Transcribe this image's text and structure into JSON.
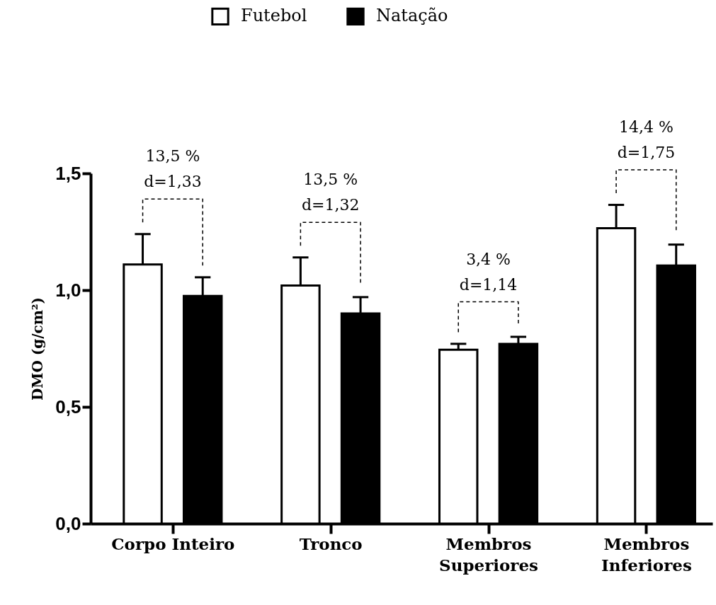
{
  "chart_data": {
    "type": "bar",
    "ylabel": "DMO (g/cm²)",
    "categories": [
      "Corpo Inteiro",
      "Tronco",
      "Membros\nSuperiores",
      "Membros\nInferiores"
    ],
    "series": [
      {
        "name": "Futebol",
        "color": "#ffffff",
        "values": [
          1.11,
          1.02,
          0.745,
          1.265
        ],
        "errors": [
          [
            1.11,
            1.24
          ],
          [
            1.02,
            1.14
          ],
          [
            0.745,
            0.77
          ],
          [
            1.265,
            1.365
          ]
        ]
      },
      {
        "name": "Natação",
        "color": "#000000",
        "values": [
          0.975,
          0.9,
          0.77,
          1.105
        ],
        "errors": [
          [
            0.975,
            1.055
          ],
          [
            0.9,
            0.97
          ],
          [
            0.77,
            0.8
          ],
          [
            1.105,
            1.195
          ]
        ]
      }
    ],
    "ylim": [
      0,
      1.5
    ],
    "yticks": [
      {
        "value": 0,
        "label": "0,0"
      },
      {
        "value": 0.5,
        "label": "0,5"
      },
      {
        "value": 1,
        "label": "1,0"
      },
      {
        "value": 1.5,
        "label": "1,5"
      }
    ],
    "grid": false,
    "legend": "top",
    "annotations": [
      "13,5 %\nd=1,33",
      "13,5 %\nd=1,32",
      "3,4 %\nd=1,14",
      "14,4 %\nd=1,75"
    ]
  }
}
